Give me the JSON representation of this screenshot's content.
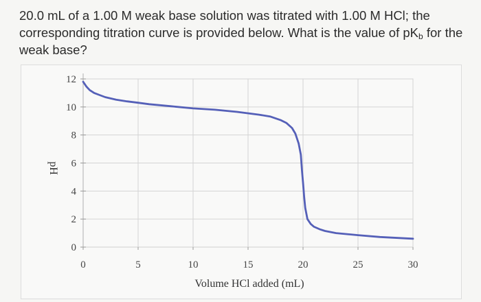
{
  "question": {
    "part1": "20.0 mL of a 1.00 M weak base solution was titrated with 1.00 M HCl; the corresponding titration curve is provided below. What is the value of pK",
    "sub": "b",
    "part2": " for the weak base?"
  },
  "chart_data": {
    "type": "line",
    "title": "",
    "xlabel": "Volume HCl added (mL)",
    "ylabel": "pH",
    "xlim": [
      0,
      30
    ],
    "ylim": [
      0,
      12
    ],
    "xticks": [
      0,
      5,
      10,
      15,
      20,
      25,
      30
    ],
    "yticks": [
      0,
      2,
      4,
      6,
      8,
      10,
      12
    ],
    "grid": true,
    "series": [
      {
        "color": "#5560b8",
        "x": [
          0,
          0.3,
          0.6,
          1,
          1.5,
          2,
          3,
          4,
          5,
          6,
          8,
          10,
          12,
          14,
          16,
          17,
          18,
          18.5,
          19,
          19.3,
          19.6,
          19.8,
          19.9,
          20,
          20.1,
          20.2,
          20.4,
          20.7,
          21,
          21.5,
          22,
          23,
          25,
          27,
          30
        ],
        "y": [
          11.8,
          11.45,
          11.2,
          11.0,
          10.85,
          10.7,
          10.52,
          10.4,
          10.3,
          10.2,
          10.05,
          9.9,
          9.8,
          9.65,
          9.45,
          9.32,
          9.05,
          8.85,
          8.5,
          8.1,
          7.4,
          6.6,
          5.5,
          4.6,
          3.6,
          2.8,
          2.0,
          1.65,
          1.45,
          1.28,
          1.15,
          1.0,
          0.85,
          0.72,
          0.6
        ]
      }
    ]
  }
}
